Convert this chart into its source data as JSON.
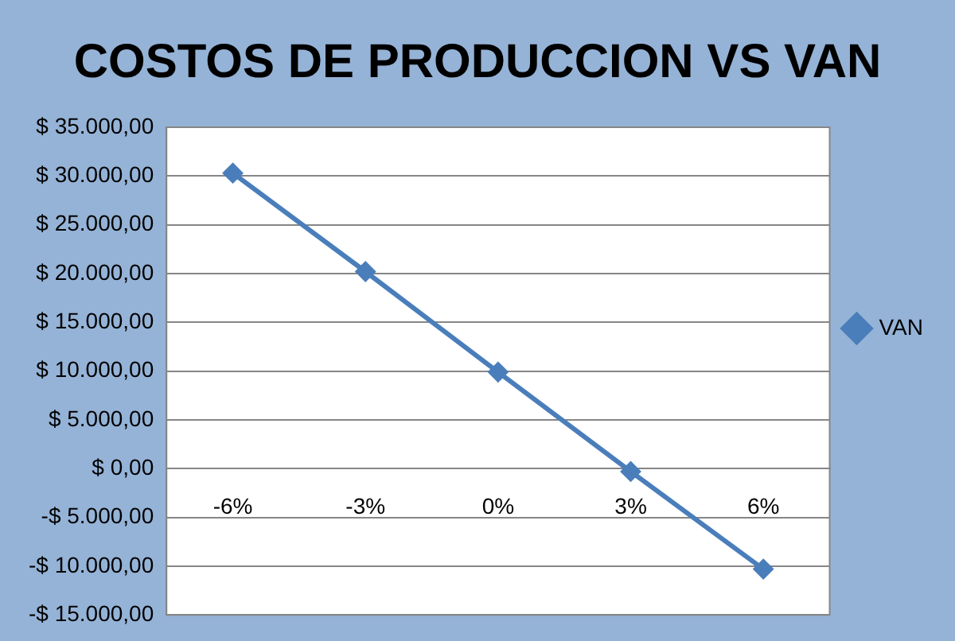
{
  "chart_data": {
    "type": "line",
    "title": "COSTOS DE PRODUCCION VS VAN",
    "categories": [
      "-6%",
      "-3%",
      "0%",
      "3%",
      "6%"
    ],
    "series": [
      {
        "name": "VAN",
        "color": "#4a7ebb",
        "values": [
          30300,
          20200,
          9900,
          -300,
          -10300
        ]
      }
    ],
    "ylim": [
      -15000,
      35000
    ],
    "yticks": [
      {
        "value": -15000,
        "label": "-$ 15.000,00"
      },
      {
        "value": -10000,
        "label": "-$ 10.000,00"
      },
      {
        "value": -5000,
        "label": "-$ 5.000,00"
      },
      {
        "value": 0,
        "label": "$ 0,00"
      },
      {
        "value": 5000,
        "label": "$ 5.000,00"
      },
      {
        "value": 10000,
        "label": "$ 10.000,00"
      },
      {
        "value": 15000,
        "label": "$ 15.000,00"
      },
      {
        "value": 20000,
        "label": "$ 20.000,00"
      },
      {
        "value": 25000,
        "label": "$ 25.000,00"
      },
      {
        "value": 30000,
        "label": "$ 30.000,00"
      },
      {
        "value": 35000,
        "label": "$ 35.000,00"
      }
    ],
    "grid": "y",
    "legend": "right",
    "marker": "diamond",
    "line_style": "solid"
  }
}
